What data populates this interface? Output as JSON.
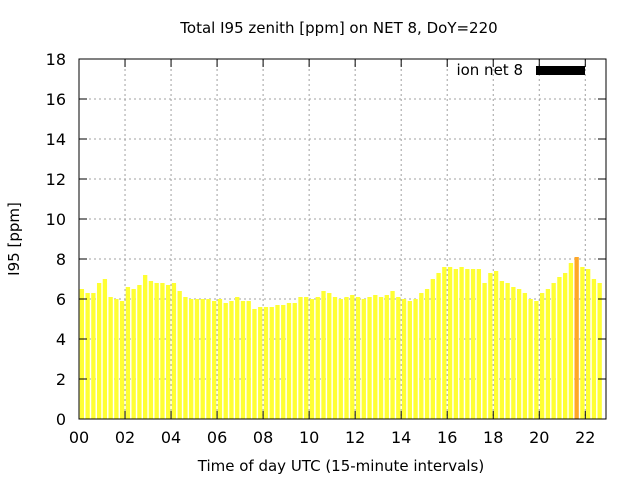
{
  "chart_data": {
    "type": "bar",
    "title": "Total I95 zenith [ppm] on NET 8, DoY=220",
    "xlabel": "Time of day UTC (15-minute intervals)",
    "ylabel": "I95 [ppm]",
    "ylim": [
      0,
      18
    ],
    "xlim": [
      0,
      22.9
    ],
    "yticks": [
      "0",
      "2",
      "4",
      "6",
      "8",
      "10",
      "12",
      "14",
      "16",
      "18"
    ],
    "xticks": [
      "00",
      "02",
      "04",
      "06",
      "08",
      "10",
      "12",
      "14",
      "16",
      "18",
      "20",
      "22"
    ],
    "grid": true,
    "legend": {
      "position": "top-right"
    },
    "series": [
      {
        "name": "ion net 8",
        "x_start_hours": 0,
        "interval_hours": 0.25,
        "values": [
          6.5,
          6.3,
          6.3,
          6.8,
          7.0,
          6.1,
          6.0,
          5.9,
          6.6,
          6.5,
          6.7,
          7.2,
          6.9,
          6.8,
          6.8,
          6.7,
          6.8,
          6.4,
          6.1,
          6.0,
          6.0,
          6.0,
          6.0,
          5.9,
          6.0,
          5.8,
          5.9,
          6.1,
          5.9,
          5.9,
          5.5,
          5.6,
          5.6,
          5.6,
          5.7,
          5.7,
          5.8,
          5.8,
          6.1,
          6.1,
          6.0,
          6.1,
          6.4,
          6.3,
          6.1,
          6.0,
          6.1,
          6.2,
          6.1,
          6.0,
          6.1,
          6.2,
          6.1,
          6.2,
          6.4,
          6.1,
          6.0,
          5.9,
          6.0,
          6.3,
          6.5,
          7.0,
          7.3,
          7.6,
          7.6,
          7.5,
          7.6,
          7.5,
          7.5,
          7.5,
          6.8,
          7.3,
          7.4,
          6.9,
          6.8,
          6.6,
          6.5,
          6.3,
          6.0,
          5.9,
          6.3,
          6.5,
          6.8,
          7.1,
          7.3,
          7.8,
          8.1,
          7.6,
          7.5,
          7.0,
          6.8
        ],
        "highlight_index": 86,
        "bar_color": "#ffff33",
        "highlight_color": "#ffa726",
        "legend_swatch_color": "#000000"
      }
    ]
  }
}
